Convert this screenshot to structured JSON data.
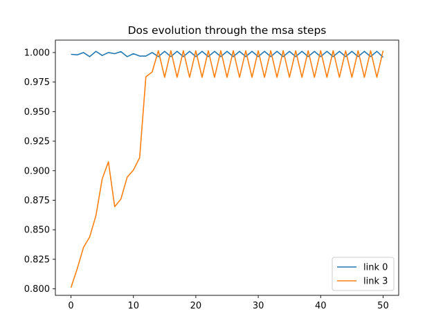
{
  "chart_data": {
    "type": "line",
    "title": "Dos evolution through the msa steps",
    "xlabel": "",
    "ylabel": "",
    "xlim": [
      -2.5,
      52.5
    ],
    "ylim": [
      0.7945,
      1.0105
    ],
    "xticks": [
      0,
      10,
      20,
      30,
      40,
      50
    ],
    "yticks": [
      0.8,
      0.825,
      0.85,
      0.875,
      0.9,
      0.925,
      0.95,
      0.975,
      1.0
    ],
    "ytick_labels": [
      "0.800",
      "0.825",
      "0.850",
      "0.875",
      "0.900",
      "0.925",
      "0.950",
      "0.975",
      "1.000"
    ],
    "grid": false,
    "legend_position": "lower-right",
    "x": [
      0,
      1,
      2,
      3,
      4,
      5,
      6,
      7,
      8,
      9,
      10,
      11,
      12,
      13,
      14,
      15,
      16,
      17,
      18,
      19,
      20,
      21,
      22,
      23,
      24,
      25,
      26,
      27,
      28,
      29,
      30,
      31,
      32,
      33,
      34,
      35,
      36,
      37,
      38,
      39,
      40,
      41,
      42,
      43,
      44,
      45,
      46,
      47,
      48,
      49,
      50
    ],
    "series": [
      {
        "name": "link 0",
        "color": "#1f77b4",
        "values": [
          0.9985,
          0.998,
          1.0,
          0.9965,
          1.001,
          0.9975,
          1.0,
          0.999,
          1.0008,
          0.9965,
          0.999,
          0.997,
          0.997,
          1.0,
          0.9965,
          1.001,
          0.9965,
          1.001,
          0.9965,
          1.001,
          0.9965,
          1.001,
          0.9965,
          1.001,
          0.9965,
          1.001,
          0.9965,
          1.001,
          0.9965,
          1.001,
          0.9965,
          1.001,
          0.9965,
          1.001,
          0.9965,
          1.001,
          0.9965,
          1.001,
          0.9965,
          1.001,
          0.9965,
          1.001,
          0.9965,
          1.001,
          0.9965,
          1.001,
          0.9965,
          1.001,
          0.9965,
          1.001,
          0.996
        ]
      },
      {
        "name": "link 3",
        "color": "#ff7f0e",
        "values": [
          0.801,
          0.817,
          0.835,
          0.844,
          0.862,
          0.893,
          0.9075,
          0.8695,
          0.876,
          0.8945,
          0.9005,
          0.911,
          0.9795,
          0.9835,
          1.0015,
          0.979,
          1.0015,
          0.979,
          1.0015,
          0.979,
          1.0015,
          0.979,
          1.0015,
          0.979,
          1.0015,
          0.979,
          1.0015,
          0.979,
          1.0015,
          0.979,
          1.0015,
          0.979,
          1.0015,
          0.979,
          1.0015,
          0.979,
          1.0015,
          0.979,
          1.0015,
          0.979,
          1.0015,
          0.979,
          1.0015,
          0.979,
          1.0015,
          0.979,
          1.0015,
          0.979,
          1.0015,
          0.979,
          1.0015
        ]
      }
    ]
  }
}
